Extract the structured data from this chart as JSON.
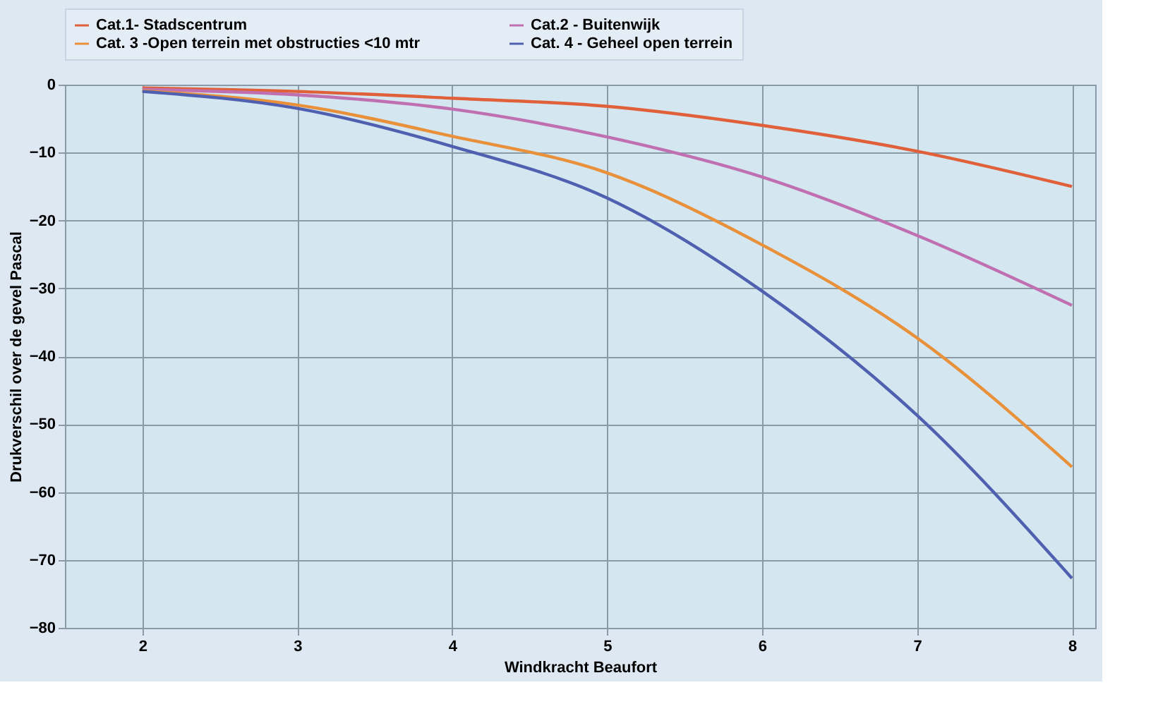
{
  "chart_data": {
    "type": "line",
    "xlabel": "Windkracht Beaufort",
    "ylabel": "Drukverschil over de gevel Pascal",
    "x": [
      2,
      3,
      4,
      5,
      6,
      7,
      8
    ],
    "series": [
      {
        "name": "Cat.1- Stadscentrum",
        "color": "#e0603a",
        "values": [
          -0.5,
          -1,
          -2,
          -3.2,
          -6,
          -9.8,
          -15
        ]
      },
      {
        "name": "Cat.2 - Buitenwijk",
        "color": "#c070b0",
        "values": [
          -0.7,
          -1.5,
          -3.6,
          -7.7,
          -13.6,
          -22.2,
          -32.5
        ]
      },
      {
        "name": "Cat. 3 -Open terrein met obstructies <10 mtr",
        "color": "#e8903a",
        "values": [
          -0.9,
          -3,
          -7.6,
          -13,
          -23.6,
          -37.3,
          -56.3
        ]
      },
      {
        "name": "Cat. 4 - Geheel open terrein",
        "color": "#5060b0",
        "values": [
          -1,
          -3.5,
          -9.1,
          -16.7,
          -30.4,
          -48.7,
          -72.7
        ]
      }
    ],
    "xlim": [
      1.5,
      8.15
    ],
    "xticks": [
      2,
      3,
      4,
      5,
      6,
      7,
      8
    ],
    "ylim": [
      -80,
      0
    ],
    "yticks": [
      -80,
      -70,
      -60,
      -50,
      -40,
      -30,
      -20,
      -10,
      0
    ],
    "grid": true,
    "legend": "top",
    "marker": "none",
    "line_style": "solid"
  }
}
